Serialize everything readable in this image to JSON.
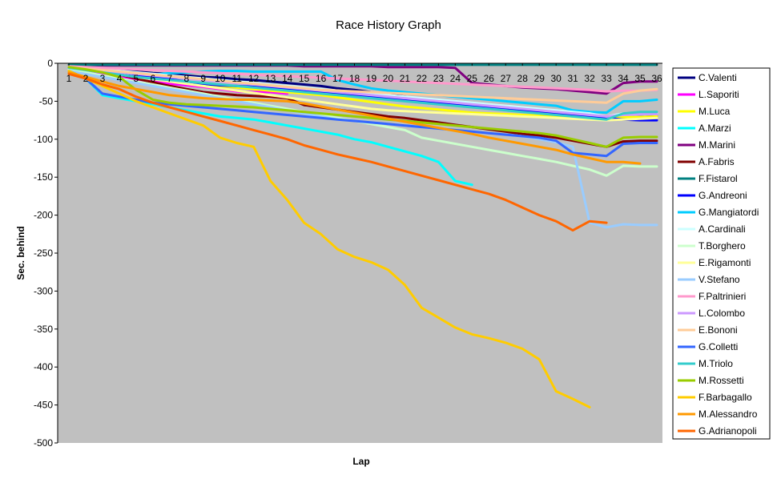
{
  "chart_data": {
    "type": "line",
    "title": "Race History Graph",
    "xlabel": "Lap",
    "ylabel": "Sec. behind",
    "ylim": [
      -500,
      0
    ],
    "yticks": [
      0,
      -50,
      -100,
      -150,
      -200,
      -250,
      -300,
      -350,
      -400,
      -450,
      -500
    ],
    "x": [
      1,
      2,
      3,
      4,
      5,
      6,
      7,
      8,
      9,
      10,
      11,
      12,
      13,
      14,
      15,
      16,
      17,
      18,
      19,
      20,
      21,
      22,
      23,
      24,
      25,
      26,
      27,
      28,
      29,
      30,
      31,
      32,
      33,
      34,
      35,
      36
    ],
    "grid": false,
    "plot_background": "#C0C0C0",
    "legend_position": "right",
    "series": [
      {
        "name": "C.Valenti",
        "color": "#000080",
        "values": [
          -5,
          -6,
          -7,
          -9,
          -11,
          -13,
          -14,
          -16,
          -18,
          -19,
          -21,
          -22,
          -24,
          -26,
          -28,
          -30,
          -33,
          -35,
          -38,
          -41,
          -44,
          -47,
          -50,
          -53,
          -56,
          -59,
          -61,
          -63,
          -65,
          -67,
          -69,
          -71,
          -73,
          -72,
          -71,
          -70
        ]
      },
      {
        "name": "L.Saporiti",
        "color": "#FF00FF",
        "values": [
          -10,
          -12,
          -15,
          -18,
          -21,
          -24,
          -27,
          -29,
          -31,
          -34,
          -37,
          -38,
          -38,
          -40,
          null,
          null,
          null,
          null,
          null,
          null,
          null,
          null,
          null,
          null,
          null,
          null,
          null,
          null,
          null,
          null,
          null,
          null,
          null,
          null,
          null,
          null
        ]
      },
      {
        "name": "M.Luca",
        "color": "#FFFF00",
        "values": [
          -8,
          -9,
          -11,
          -13,
          -16,
          -19,
          -22,
          -25,
          -28,
          -30,
          -32,
          -34,
          -36,
          -38,
          -40,
          -42,
          -45,
          -48,
          -51,
          -54,
          -57,
          -59,
          -61,
          -63,
          -65,
          -66,
          -67,
          -68,
          -69,
          -70,
          -70,
          -71,
          -72,
          -71,
          -71,
          -70
        ]
      },
      {
        "name": "A.Marzi",
        "color": "#00FFFF",
        "values": [
          -10,
          -20,
          -42,
          -46,
          -50,
          -54,
          -58,
          -62,
          -66,
          -70,
          -72,
          -74,
          -78,
          -82,
          -86,
          -90,
          -94,
          -100,
          -104,
          -110,
          -116,
          -122,
          -130,
          -155,
          -160,
          null,
          null,
          null,
          null,
          null,
          null,
          null,
          null,
          null,
          null,
          null
        ]
      },
      {
        "name": "M.Marini",
        "color": "#800080",
        "values": [
          -3,
          -3,
          -3,
          -3,
          -3,
          -3,
          -3,
          -3,
          -3,
          -3,
          -3,
          -3,
          -3,
          -3,
          -4,
          -4,
          -4,
          -4,
          -4,
          -5,
          -5,
          -5,
          -5,
          -6,
          -26,
          -28,
          -30,
          -32,
          -33,
          -34,
          -36,
          -38,
          -40,
          -26,
          -24,
          -24
        ]
      },
      {
        "name": "A.Fabris",
        "color": "#800000",
        "values": [
          -6,
          -9,
          -12,
          -15,
          -20,
          -25,
          -30,
          -34,
          -38,
          -40,
          -42,
          -43,
          -44,
          -46,
          -55,
          -58,
          -61,
          -64,
          -67,
          -70,
          -72,
          -75,
          -78,
          -81,
          -84,
          -87,
          -90,
          -93,
          -95,
          -98,
          -102,
          -106,
          -110,
          -103,
          -102,
          -102
        ]
      },
      {
        "name": "F.Fistarol",
        "color": "#008080",
        "values": [
          -2,
          -2,
          -2,
          -2,
          -2,
          -2,
          -2,
          -2,
          -2,
          -2,
          -2,
          -2,
          -2,
          -2,
          -2,
          -2,
          -2,
          -2,
          -2,
          -2,
          -2,
          -2,
          -2,
          -2,
          -2,
          -2,
          -2,
          -2,
          -2,
          -2,
          -2,
          -2,
          -2,
          -2,
          -2,
          -2
        ]
      },
      {
        "name": "G.Andreoni",
        "color": "#0000FF",
        "values": [
          -5,
          -7,
          -9,
          -12,
          -15,
          -18,
          -21,
          -24,
          -27,
          -29,
          -30,
          -31,
          -32,
          -34,
          -36,
          -38,
          -40,
          -42,
          -44,
          -46,
          -48,
          -50,
          -52,
          -54,
          -56,
          -58,
          -60,
          -62,
          -64,
          -66,
          -68,
          -70,
          -72,
          -74,
          -75,
          -75
        ]
      },
      {
        "name": "G.Mangiatordi",
        "color": "#00CCFF",
        "values": [
          -6,
          -8,
          -10,
          -12,
          -14,
          -15,
          -13,
          -12,
          -11,
          -10,
          -10,
          -11,
          -11,
          -11,
          -11,
          -11,
          -22,
          -28,
          -33,
          -36,
          -38,
          -40,
          -42,
          -44,
          -46,
          -48,
          -50,
          -52,
          -54,
          -56,
          -62,
          -64,
          -65,
          -50,
          -50,
          -48
        ]
      },
      {
        "name": "A.Cardinali",
        "color": "#CCFFFF",
        "values": [
          -4,
          -6,
          -8,
          -10,
          -12,
          -14,
          -16,
          -18,
          -20,
          -22,
          -24,
          -26,
          -28,
          -30,
          -32,
          -34,
          -36,
          -38,
          -40,
          -42,
          -44,
          -46,
          -48,
          -50,
          -52,
          -54,
          -56,
          -58,
          -60,
          -62,
          -64,
          -66,
          -70,
          -66,
          -65,
          -65
        ]
      },
      {
        "name": "T.Borghero",
        "color": "#CCFFCC",
        "values": [
          -8,
          -12,
          -16,
          -20,
          -24,
          -28,
          -32,
          -36,
          -40,
          -44,
          -48,
          -52,
          -56,
          -60,
          -64,
          -68,
          -72,
          -76,
          -80,
          -84,
          -88,
          -98,
          -102,
          -106,
          -110,
          -114,
          -118,
          -122,
          -126,
          -130,
          -135,
          -140,
          -148,
          -135,
          -136,
          -136
        ]
      },
      {
        "name": "E.Rigamonti",
        "color": "#FFFF99",
        "values": [
          -6,
          -9,
          -12,
          -15,
          -18,
          -21,
          -24,
          -27,
          -30,
          -33,
          -36,
          -39,
          -42,
          -45,
          -48,
          -51,
          -54,
          -57,
          -60,
          -62,
          -63,
          -64,
          -65,
          -66,
          -67,
          -68,
          -69,
          -70,
          -71,
          -72,
          -73,
          -74,
          -75,
          -74,
          -73,
          -72
        ]
      },
      {
        "name": "V.Stefano",
        "color": "#99CCFF",
        "values": [
          -10,
          -14,
          -18,
          -22,
          -26,
          -30,
          -34,
          -38,
          -42,
          -46,
          -50,
          -54,
          -58,
          -62,
          -66,
          -70,
          -74,
          -76,
          -78,
          -80,
          -82,
          -84,
          -86,
          -88,
          -90,
          -92,
          -94,
          -96,
          -100,
          -104,
          -110,
          -210,
          -216,
          -212,
          -213,
          -213
        ]
      },
      {
        "name": "F.Paltrinieri",
        "color": "#FF99CC",
        "values": [
          -4,
          -5,
          -6,
          -7,
          -8,
          -9,
          -10,
          -11,
          -12,
          -13,
          -14,
          -15,
          -16,
          -17,
          -18,
          -19,
          -20,
          -21,
          -22,
          -23,
          -24,
          -25,
          -26,
          -27,
          -28,
          -29,
          -30,
          -31,
          -32,
          -33,
          -34,
          -35,
          -37,
          -36,
          -36,
          -35
        ]
      },
      {
        "name": "L.Colombo",
        "color": "#CC99FF",
        "values": [
          -6,
          -8,
          -10,
          -12,
          -14,
          -16,
          -18,
          -20,
          -22,
          -24,
          -26,
          -28,
          -30,
          -32,
          -34,
          -36,
          -38,
          -40,
          -42,
          -44,
          -46,
          -48,
          -50,
          -52,
          -54,
          -56,
          -58,
          -60,
          -62,
          -64,
          -66,
          -68,
          -70,
          -68,
          -67,
          -67
        ]
      },
      {
        "name": "E.Bononi",
        "color": "#FFCC99",
        "values": [
          -5,
          -7,
          -9,
          -11,
          -13,
          -15,
          -17,
          -19,
          -21,
          -23,
          -25,
          -27,
          -29,
          -31,
          -33,
          -35,
          -36,
          -37,
          -38,
          -39,
          -40,
          -41,
          -42,
          -43,
          -44,
          -45,
          -46,
          -47,
          -48,
          -49,
          -50,
          -51,
          -52,
          -40,
          -36,
          -34
        ]
      },
      {
        "name": "G.Colletti",
        "color": "#3366FF",
        "values": [
          -10,
          -20,
          -40,
          -44,
          -48,
          -52,
          -54,
          -56,
          -58,
          -60,
          -62,
          -64,
          -66,
          -68,
          -70,
          -72,
          -74,
          -76,
          -78,
          -80,
          -82,
          -84,
          -86,
          -88,
          -90,
          -92,
          -94,
          -96,
          -98,
          -102,
          -118,
          -120,
          -122,
          -106,
          -105,
          -105
        ]
      },
      {
        "name": "M.Triolo",
        "color": "#33CCCC",
        "values": [
          -6,
          -9,
          -12,
          -15,
          -18,
          -20,
          -22,
          -24,
          -26,
          -28,
          -30,
          -32,
          -34,
          -36,
          -38,
          -40,
          -42,
          -44,
          -46,
          -48,
          -50,
          -52,
          -54,
          -56,
          -58,
          -60,
          -62,
          -64,
          -66,
          -68,
          -70,
          -72,
          -74,
          -66,
          -64,
          -64
        ]
      },
      {
        "name": "M.Rossetti",
        "color": "#99CC00",
        "values": [
          -5,
          -8,
          -12,
          -18,
          -35,
          -48,
          -52,
          -54,
          -55,
          -56,
          -57,
          -58,
          -60,
          -62,
          -64,
          -66,
          -68,
          -70,
          -72,
          -74,
          -76,
          -78,
          -80,
          -82,
          -84,
          -86,
          -88,
          -90,
          -92,
          -95,
          -100,
          -105,
          -110,
          -98,
          -97,
          -97
        ]
      },
      {
        "name": "F.Barbagallo",
        "color": "#FFCC00",
        "values": [
          -10,
          -20,
          -30,
          -40,
          -50,
          -58,
          -66,
          -74,
          -82,
          -98,
          -105,
          -110,
          -155,
          -180,
          -210,
          -225,
          -245,
          -255,
          -262,
          -272,
          -292,
          -322,
          -335,
          -348,
          -357,
          -362,
          -368,
          -376,
          -390,
          -432,
          -442,
          -453,
          null,
          null,
          null,
          null
        ]
      },
      {
        "name": "M.Alessandro",
        "color": "#FF9900",
        "values": [
          -12,
          -18,
          -24,
          -30,
          -34,
          -38,
          -42,
          -44,
          -46,
          -47,
          -48,
          -48,
          -49,
          -50,
          -53,
          -57,
          -61,
          -65,
          -69,
          -73,
          -77,
          -81,
          -85,
          -89,
          -93,
          -98,
          -102,
          -106,
          -110,
          -114,
          -120,
          -125,
          -130,
          -130,
          -132,
          null
        ]
      },
      {
        "name": "G.Adrianopoli",
        "color": "#FF6600",
        "values": [
          -14,
          -20,
          -28,
          -34,
          -44,
          -52,
          -58,
          -64,
          -70,
          -76,
          -82,
          -88,
          -94,
          -100,
          -108,
          -114,
          -120,
          -125,
          -130,
          -136,
          -142,
          -148,
          -154,
          -160,
          -166,
          -172,
          -180,
          -190,
          -200,
          -208,
          -220,
          -208,
          -210,
          null,
          null,
          null
        ]
      }
    ]
  }
}
